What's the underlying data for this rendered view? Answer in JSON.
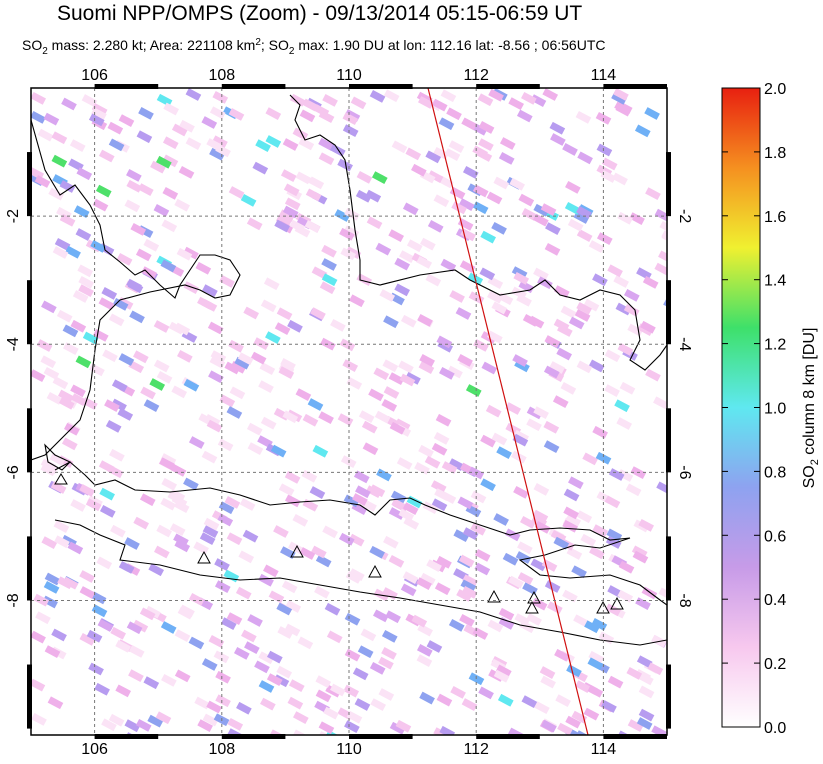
{
  "map": {
    "title": "Suomi NPP/OMPS (Zoom) - 09/13/2014 05:15-06:59 UT",
    "subtitle_parts": [
      "SO",
      "2",
      " mass: 2.280 kt; Area: 221108 km",
      "2",
      "; SO",
      "2",
      " max: 1.90 DU at lon: 112.16 lat: -8.56 ; 06:56UTC"
    ],
    "xlim": [
      105,
      115
    ],
    "ylim": [
      -10.1,
      0
    ],
    "xticks": [
      106,
      108,
      110,
      112,
      114
    ],
    "yticks": [
      -2,
      -4,
      -6,
      -8
    ],
    "colorbar": {
      "label_parts": [
        "SO",
        "2",
        " column 8 km [DU]"
      ],
      "lim": [
        0,
        2
      ],
      "ticks": [
        {
          "value": 0,
          "label": "0.0"
        },
        0.2,
        0.4,
        0.6,
        0.8,
        {
          "value": 1,
          "label": "1.0"
        },
        1.2,
        1.4,
        1.6,
        1.8,
        {
          "value": 2,
          "label": "2.0"
        }
      ],
      "colors": [
        "#ffffff",
        "#f7c8ee",
        "#c79be8",
        "#8ea2f0",
        "#5fe8f0",
        "#3ee06a",
        "#f0f030",
        "#f59020",
        "#e82010"
      ]
    }
  }
}
